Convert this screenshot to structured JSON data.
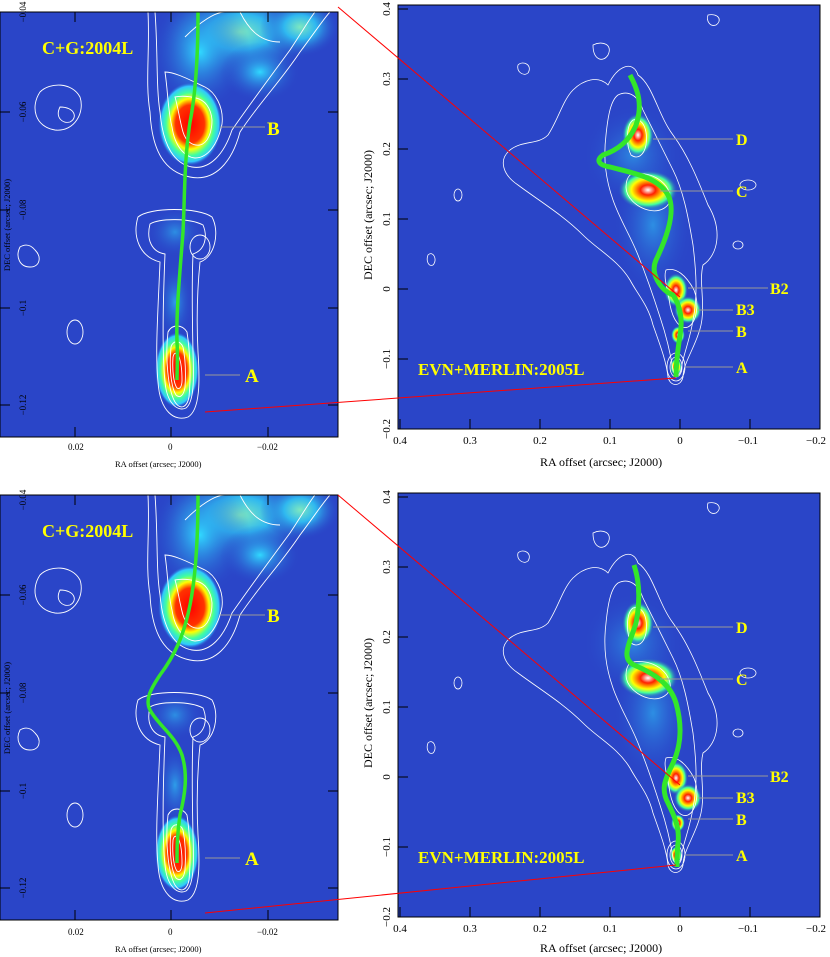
{
  "colors": {
    "background_map": "#2a45c8",
    "contour": "#ffffff",
    "jet_path": "#33e62a",
    "connector": "#ff0000",
    "label_yellow": "#ffff00",
    "frame": "#000000"
  },
  "rows": [
    {
      "left": {
        "title": "C+G:2004L",
        "xlabel": "RA offset (arcsec; J2000)",
        "ylabel": "DEC offset (arcsec; J2000)",
        "xticks": [
          "0.02",
          "0",
          "−0.02"
        ],
        "yticks": [
          "−0.04",
          "−0.06",
          "−0.08",
          "−0.1",
          "−0.12"
        ],
        "labels": [
          "B",
          "A"
        ]
      },
      "right": {
        "title": "EVN+MERLIN:2005L",
        "xlabel": "RA offset (arcsec; J2000)",
        "ylabel": "DEC offset (arcsec; J2000)",
        "xticks": [
          "0.4",
          "0.3",
          "0.2",
          "0.1",
          "0",
          "−0.1",
          "−0.2"
        ],
        "yticks": [
          "0.4",
          "0.3",
          "0.2",
          "0.1",
          "0",
          "−0.1",
          "−0.2"
        ],
        "labels": [
          "D",
          "C",
          "B2",
          "B3",
          "B",
          "A"
        ]
      }
    },
    {
      "left": {
        "title": "C+G:2004L",
        "xlabel": "RA offset (arcsec; J2000)",
        "ylabel": "DEC offset (arcsec; J2000)",
        "xticks": [
          "0.02",
          "0",
          "−0.02"
        ],
        "yticks": [
          "−0.04",
          "−0.06",
          "−0.08",
          "−0.1",
          "−0.12"
        ],
        "labels": [
          "B",
          "A"
        ]
      },
      "right": {
        "title": "EVN+MERLIN:2005L",
        "xlabel": "RA offset (arcsec; J2000)",
        "ylabel": "DEC offset (arcsec; J2000)",
        "xticks": [
          "0.4",
          "0.3",
          "0.2",
          "0.1",
          "0",
          "−0.1",
          "−0.2"
        ],
        "yticks": [
          "0.4",
          "0.3",
          "0.2",
          "0.1",
          "0",
          "−0.1",
          "−0.2"
        ],
        "labels": [
          "D",
          "C",
          "B2",
          "B3",
          "B",
          "A"
        ]
      }
    }
  ]
}
